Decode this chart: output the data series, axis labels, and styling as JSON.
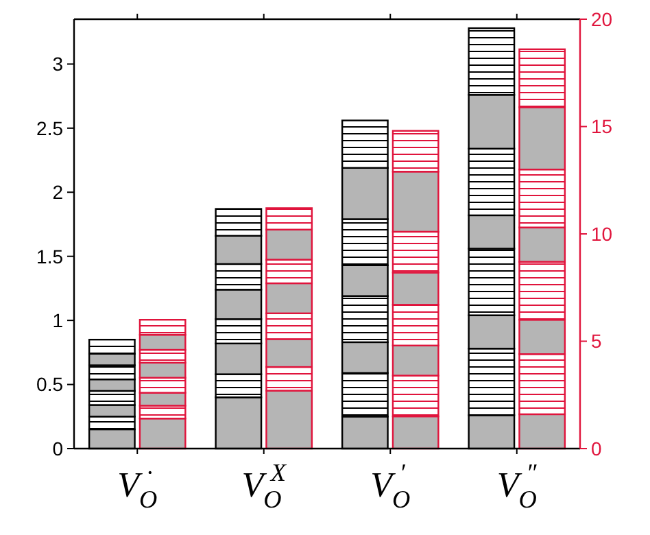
{
  "chart_data": {
    "type": "bar",
    "stacked": true,
    "categories": [
      "V$_{O}$$^{·}$",
      "V$_{O}$$^{X}$",
      "V$_{O}$$^{′}$",
      "V$_{O}$$^{″}$"
    ],
    "ylim": [
      0,
      3.35
    ],
    "yticks": [
      0,
      0.5,
      1,
      1.5,
      2,
      2.5,
      3
    ],
    "y2lim": [
      0,
      20
    ],
    "y2ticks": [
      0,
      5,
      10,
      15,
      20
    ],
    "grid": false,
    "series": [
      {
        "axis": "y",
        "color": "#b5b5b5",
        "values": [
          0.15,
          0.4,
          0.25,
          0.26
        ]
      },
      {
        "axis": "y",
        "color": "#000000",
        "values": [
          0.1,
          0.18,
          0.34,
          0.52
        ]
      },
      {
        "axis": "y",
        "color": "#b5b5b5",
        "values": [
          0.09,
          0.24,
          0.24,
          0.26
        ]
      },
      {
        "axis": "y",
        "color": "#000000",
        "values": [
          0.11,
          0.19,
          0.36,
          0.52
        ]
      },
      {
        "axis": "y",
        "color": "#b5b5b5",
        "values": [
          0.09,
          0.23,
          0.24,
          0.26
        ]
      },
      {
        "axis": "y",
        "color": "#000000",
        "values": [
          0.11,
          0.2,
          0.36,
          0.52
        ]
      },
      {
        "axis": "y",
        "color": "#b5b5b5",
        "values": [
          0.09,
          0.22,
          0.4,
          0.42
        ]
      },
      {
        "axis": "y",
        "color": "#000000",
        "values": [
          0.11,
          0.21,
          0.37,
          0.52
        ]
      },
      {
        "axis": "y2",
        "color": "#b5b5b5",
        "values": [
          1.4,
          2.7,
          1.5,
          1.6
        ]
      },
      {
        "axis": "y2",
        "color": "#e0143c",
        "values": [
          0.6,
          1.1,
          1.9,
          2.8
        ]
      },
      {
        "axis": "y2",
        "color": "#b5b5b5",
        "values": [
          0.6,
          1.3,
          1.4,
          1.6
        ]
      },
      {
        "axis": "y2",
        "color": "#e0143c",
        "values": [
          0.7,
          1.2,
          1.9,
          2.7
        ]
      },
      {
        "axis": "y2",
        "color": "#b5b5b5",
        "values": [
          0.7,
          1.4,
          1.5,
          1.6
        ]
      },
      {
        "axis": "y2",
        "color": "#e0143c",
        "values": [
          0.6,
          1.1,
          1.9,
          2.7
        ]
      },
      {
        "axis": "y2",
        "color": "#b5b5b5",
        "values": [
          0.7,
          1.4,
          2.8,
          2.9
        ]
      },
      {
        "axis": "y2",
        "color": "#e0143c",
        "values": [
          0.7,
          1.0,
          1.9,
          2.7
        ]
      }
    ]
  }
}
